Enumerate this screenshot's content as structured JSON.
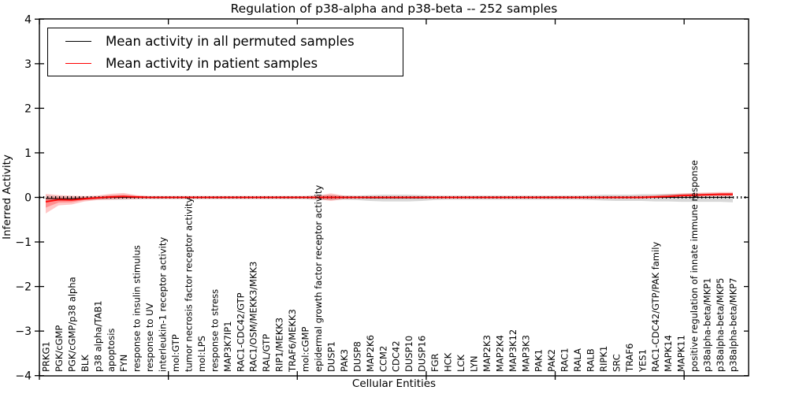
{
  "figure": {
    "title": "Regulation of p38-alpha and p38-beta -- 252 samples"
  },
  "chart_data": {
    "type": "line",
    "title": "Regulation of p38-alpha and p38-beta -- 252 samples",
    "xlabel": "Cellular Entities",
    "ylabel": "Inferred Activity",
    "ylim": [
      -4,
      4
    ],
    "yticks": [
      -4,
      -3,
      -2,
      -1,
      0,
      1,
      2,
      3,
      4
    ],
    "xtick_axis_units": [
      0,
      10,
      20,
      30,
      40,
      50
    ],
    "grid": false,
    "legend_position": "upper left",
    "zero_line": {
      "value": 0,
      "style": "dotted",
      "color": "#000000"
    },
    "colors": {
      "permuted_line": "#000000",
      "permuted_band": "#999999",
      "patient_line": "#ff0000",
      "patient_band": "#ff0000",
      "frame": "#000000"
    },
    "legend": [
      {
        "label": "Mean activity in all permuted samples",
        "color": "#000000"
      },
      {
        "label": "Mean activity in patient samples",
        "color": "#ff0000"
      }
    ],
    "categories": [
      "PRKG1",
      "PGK/cGMP",
      "PGK/cGMP/p38 alpha",
      "BLK",
      "p38 alpha/TAB1",
      "apoptosis",
      "FYN",
      "response to insulin stimulus",
      "response to UV",
      "interleukin-1 receptor activity",
      "mol:GTP",
      "tumor necrosis factor receptor activity",
      "mol:LPS",
      "response to stress",
      "MAP3K7IP1",
      "RAC1-CDC42/GTP",
      "RAC1/OSM/MEKK3/MKK3",
      "RAL/GTP",
      "RIP1/MEKK3",
      "TRAF6/MEKK3",
      "mol:cGMP",
      "epidermal growth factor receptor activity",
      "DUSP1",
      "PAK3",
      "DUSP8",
      "MAP2K6",
      "CCM2",
      "CDC42",
      "DUSP10",
      "DUSP16",
      "FGR",
      "HCK",
      "LCK",
      "LYN",
      "MAP2K3",
      "MAP2K4",
      "MAP3K12",
      "MAP3K3",
      "PAK1",
      "PAK2",
      "RAC1",
      "RALA",
      "RALB",
      "RIPK1",
      "SRC",
      "TRAF6",
      "YES1",
      "RAC1-CDC42/GTP/PAK family",
      "MAPK14",
      "MAPK11",
      "positive regulation of innate immune response",
      "p38alpha-beta/MKP1",
      "p38alpha-beta/MKP5",
      "p38alpha-beta/MKP7"
    ],
    "series": [
      {
        "name": "Mean activity in all permuted samples",
        "color": "#000000",
        "values": [
          -0.02,
          -0.03,
          -0.03,
          -0.02,
          -0.01,
          0,
          0,
          0,
          0,
          0,
          0,
          0,
          0,
          0,
          0,
          0,
          0,
          0,
          0,
          0,
          0,
          0,
          0,
          0,
          0,
          -0.01,
          -0.01,
          -0.01,
          -0.01,
          -0.01,
          0,
          0,
          0,
          0,
          0,
          0,
          0,
          0,
          0,
          0,
          0,
          0,
          0,
          0,
          0,
          0,
          0,
          0,
          0,
          0,
          0,
          0,
          0,
          0
        ],
        "band_upper": [
          0.04,
          0.03,
          0.02,
          0.02,
          0.03,
          0.04,
          0.04,
          0.03,
          0.03,
          0.03,
          0.03,
          0.03,
          0.03,
          0.03,
          0.03,
          0.03,
          0.03,
          0.03,
          0.03,
          0.03,
          0.03,
          0.05,
          0.05,
          0.04,
          0.04,
          0.05,
          0.06,
          0.06,
          0.06,
          0.05,
          0.04,
          0.04,
          0.04,
          0.04,
          0.04,
          0.04,
          0.04,
          0.04,
          0.04,
          0.04,
          0.04,
          0.04,
          0.05,
          0.06,
          0.06,
          0.06,
          0.07,
          0.07,
          0.08,
          0.08,
          0.09,
          0.09,
          0.09,
          0.1
        ],
        "band_lower": [
          -0.08,
          -0.08,
          -0.07,
          -0.06,
          -0.05,
          -0.05,
          -0.05,
          -0.04,
          -0.04,
          -0.04,
          -0.04,
          -0.04,
          -0.04,
          -0.04,
          -0.04,
          -0.04,
          -0.04,
          -0.04,
          -0.04,
          -0.04,
          -0.04,
          -0.06,
          -0.06,
          -0.05,
          -0.06,
          -0.08,
          -0.09,
          -0.09,
          -0.09,
          -0.08,
          -0.06,
          -0.05,
          -0.05,
          -0.05,
          -0.05,
          -0.05,
          -0.05,
          -0.05,
          -0.05,
          -0.05,
          -0.05,
          -0.05,
          -0.06,
          -0.07,
          -0.08,
          -0.08,
          -0.08,
          -0.09,
          -0.09,
          -0.1,
          -0.1,
          -0.1,
          -0.1,
          -0.11
        ]
      },
      {
        "name": "Mean activity in patient samples",
        "color": "#ff0000",
        "values": [
          -0.1,
          -0.05,
          -0.06,
          -0.03,
          -0.01,
          0.01,
          0.02,
          0.01,
          0,
          0,
          0,
          0,
          0,
          0,
          0,
          0,
          0,
          0,
          0,
          0,
          0,
          0,
          0,
          0,
          0,
          0,
          0,
          0,
          0,
          0,
          0,
          0,
          0,
          0,
          0,
          0,
          0,
          0,
          0,
          0,
          0,
          0,
          0,
          0,
          0,
          0,
          0,
          0.01,
          0.02,
          0.04,
          0.05,
          0.06,
          0.07,
          0.07
        ],
        "band_upper": [
          0.08,
          0.05,
          0.04,
          0.03,
          0.04,
          0.08,
          0.1,
          0.05,
          0.03,
          0.03,
          0.03,
          0.03,
          0.03,
          0.03,
          0.03,
          0.03,
          0.03,
          0.03,
          0.03,
          0.03,
          0.03,
          0.04,
          0.09,
          0.04,
          0.03,
          0.03,
          0.03,
          0.03,
          0.03,
          0.03,
          0.03,
          0.03,
          0.03,
          0.03,
          0.03,
          0.03,
          0.03,
          0.03,
          0.03,
          0.03,
          0.03,
          0.03,
          0.03,
          0.03,
          0.03,
          0.03,
          0.04,
          0.05,
          0.07,
          0.09,
          0.1,
          0.11,
          0.12,
          0.12
        ],
        "band_lower": [
          -0.36,
          -0.18,
          -0.16,
          -0.09,
          -0.06,
          -0.05,
          -0.04,
          -0.04,
          -0.03,
          -0.03,
          -0.03,
          -0.03,
          -0.03,
          -0.03,
          -0.03,
          -0.03,
          -0.03,
          -0.03,
          -0.03,
          -0.03,
          -0.03,
          -0.04,
          -0.08,
          -0.04,
          -0.03,
          -0.03,
          -0.03,
          -0.03,
          -0.03,
          -0.03,
          -0.03,
          -0.03,
          -0.03,
          -0.03,
          -0.03,
          -0.03,
          -0.03,
          -0.03,
          -0.03,
          -0.03,
          -0.03,
          -0.03,
          -0.03,
          -0.03,
          -0.03,
          -0.03,
          -0.03,
          -0.02,
          -0.01,
          0.0,
          0.01,
          0.02,
          0.02,
          0.02
        ]
      }
    ]
  }
}
